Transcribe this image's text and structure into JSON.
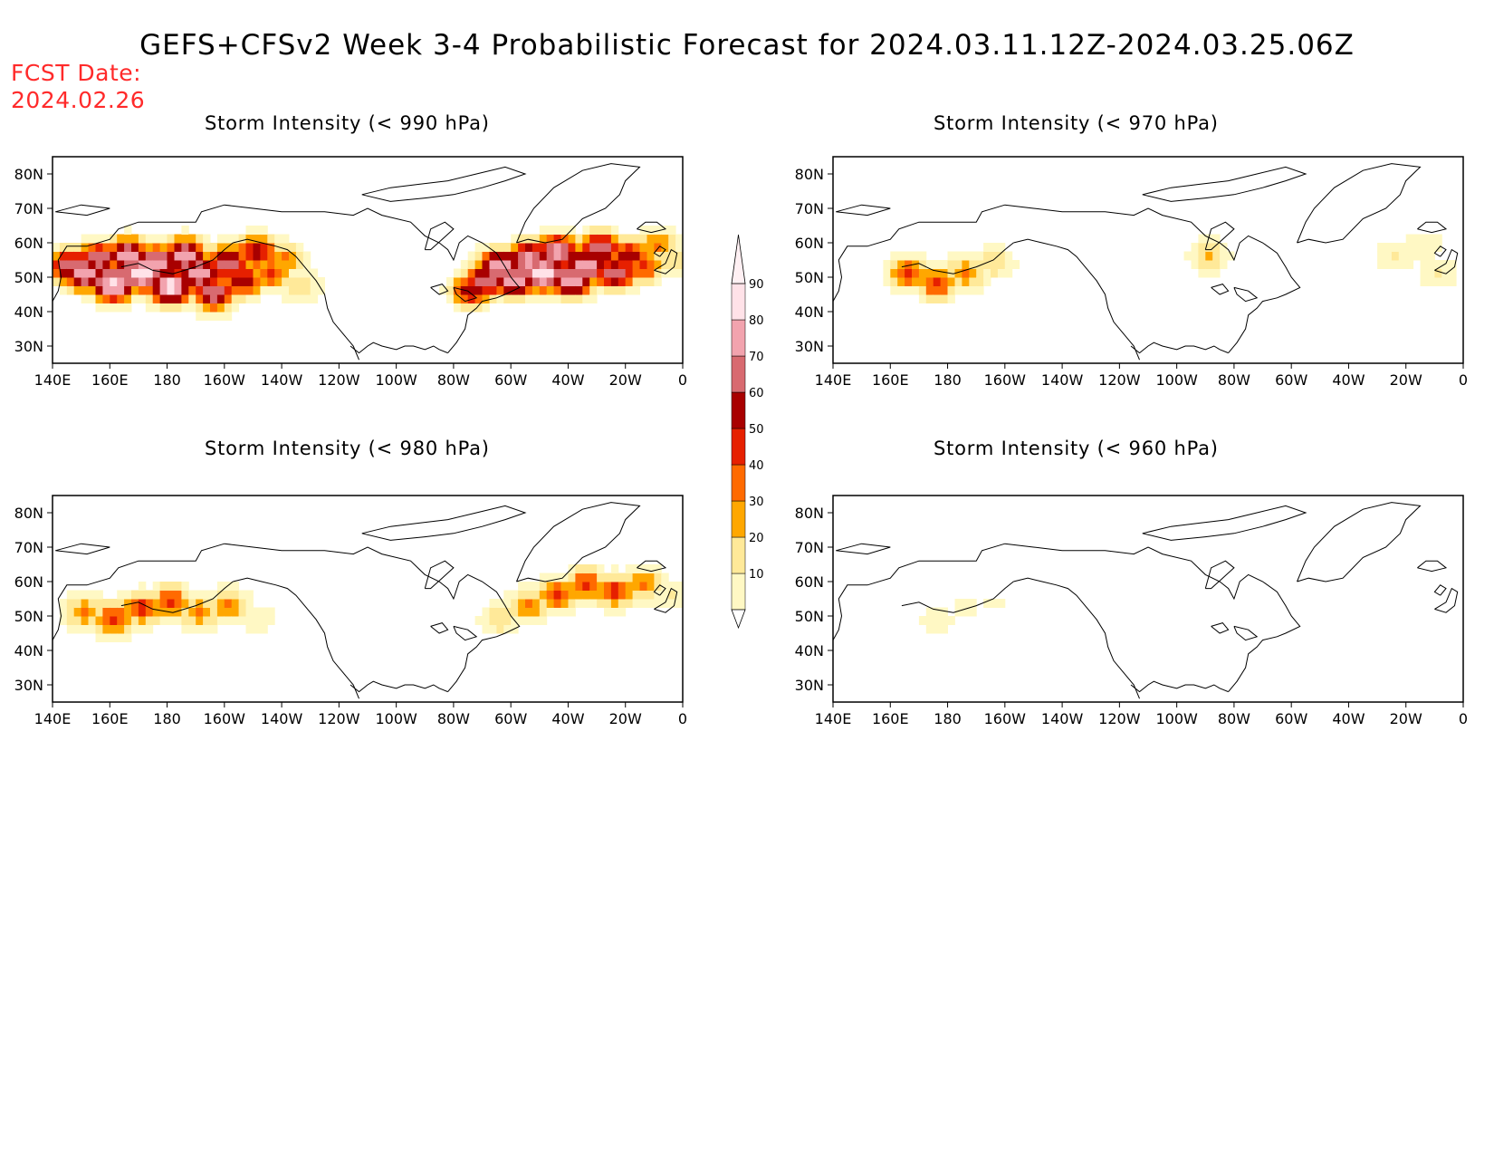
{
  "header": {
    "title": "GEFS+CFSv2 Week 3-4 Probabilistic Forecast for 2024.03.11.12Z-2024.03.25.06Z",
    "fcst_label": "FCST Date:",
    "fcst_date": "2024.02.26"
  },
  "axes": {
    "lat_labels": [
      "80N",
      "70N",
      "60N",
      "50N",
      "40N",
      "30N"
    ],
    "lat_values": [
      80,
      70,
      60,
      50,
      40,
      30
    ],
    "lon_labels": [
      "140E",
      "160E",
      "180",
      "160W",
      "140W",
      "120W",
      "100W",
      "80W",
      "60W",
      "40W",
      "20W",
      "0"
    ],
    "lon_values": [
      140,
      160,
      180,
      200,
      220,
      240,
      260,
      280,
      300,
      320,
      340,
      360
    ],
    "lon_range": [
      140,
      360
    ],
    "lat_range": [
      25,
      85
    ]
  },
  "panels": [
    {
      "id": "p990",
      "title": "Storm Intensity (< 990 hPa)"
    },
    {
      "id": "p970",
      "title": "Storm Intensity (< 970 hPa)"
    },
    {
      "id": "p980",
      "title": "Storm Intensity (< 980 hPa)"
    },
    {
      "id": "p960",
      "title": "Storm Intensity (< 960 hPa)"
    }
  ],
  "colorbar": {
    "levels": [
      "10",
      "20",
      "30",
      "40",
      "50",
      "60",
      "70",
      "80",
      "90"
    ],
    "colors": [
      "#fff8c4",
      "#ffe999",
      "#ffa700",
      "#ff6a00",
      "#e62000",
      "#a80000",
      "#d86a70",
      "#f2a3ae",
      "#ffe2e8"
    ]
  }
}
